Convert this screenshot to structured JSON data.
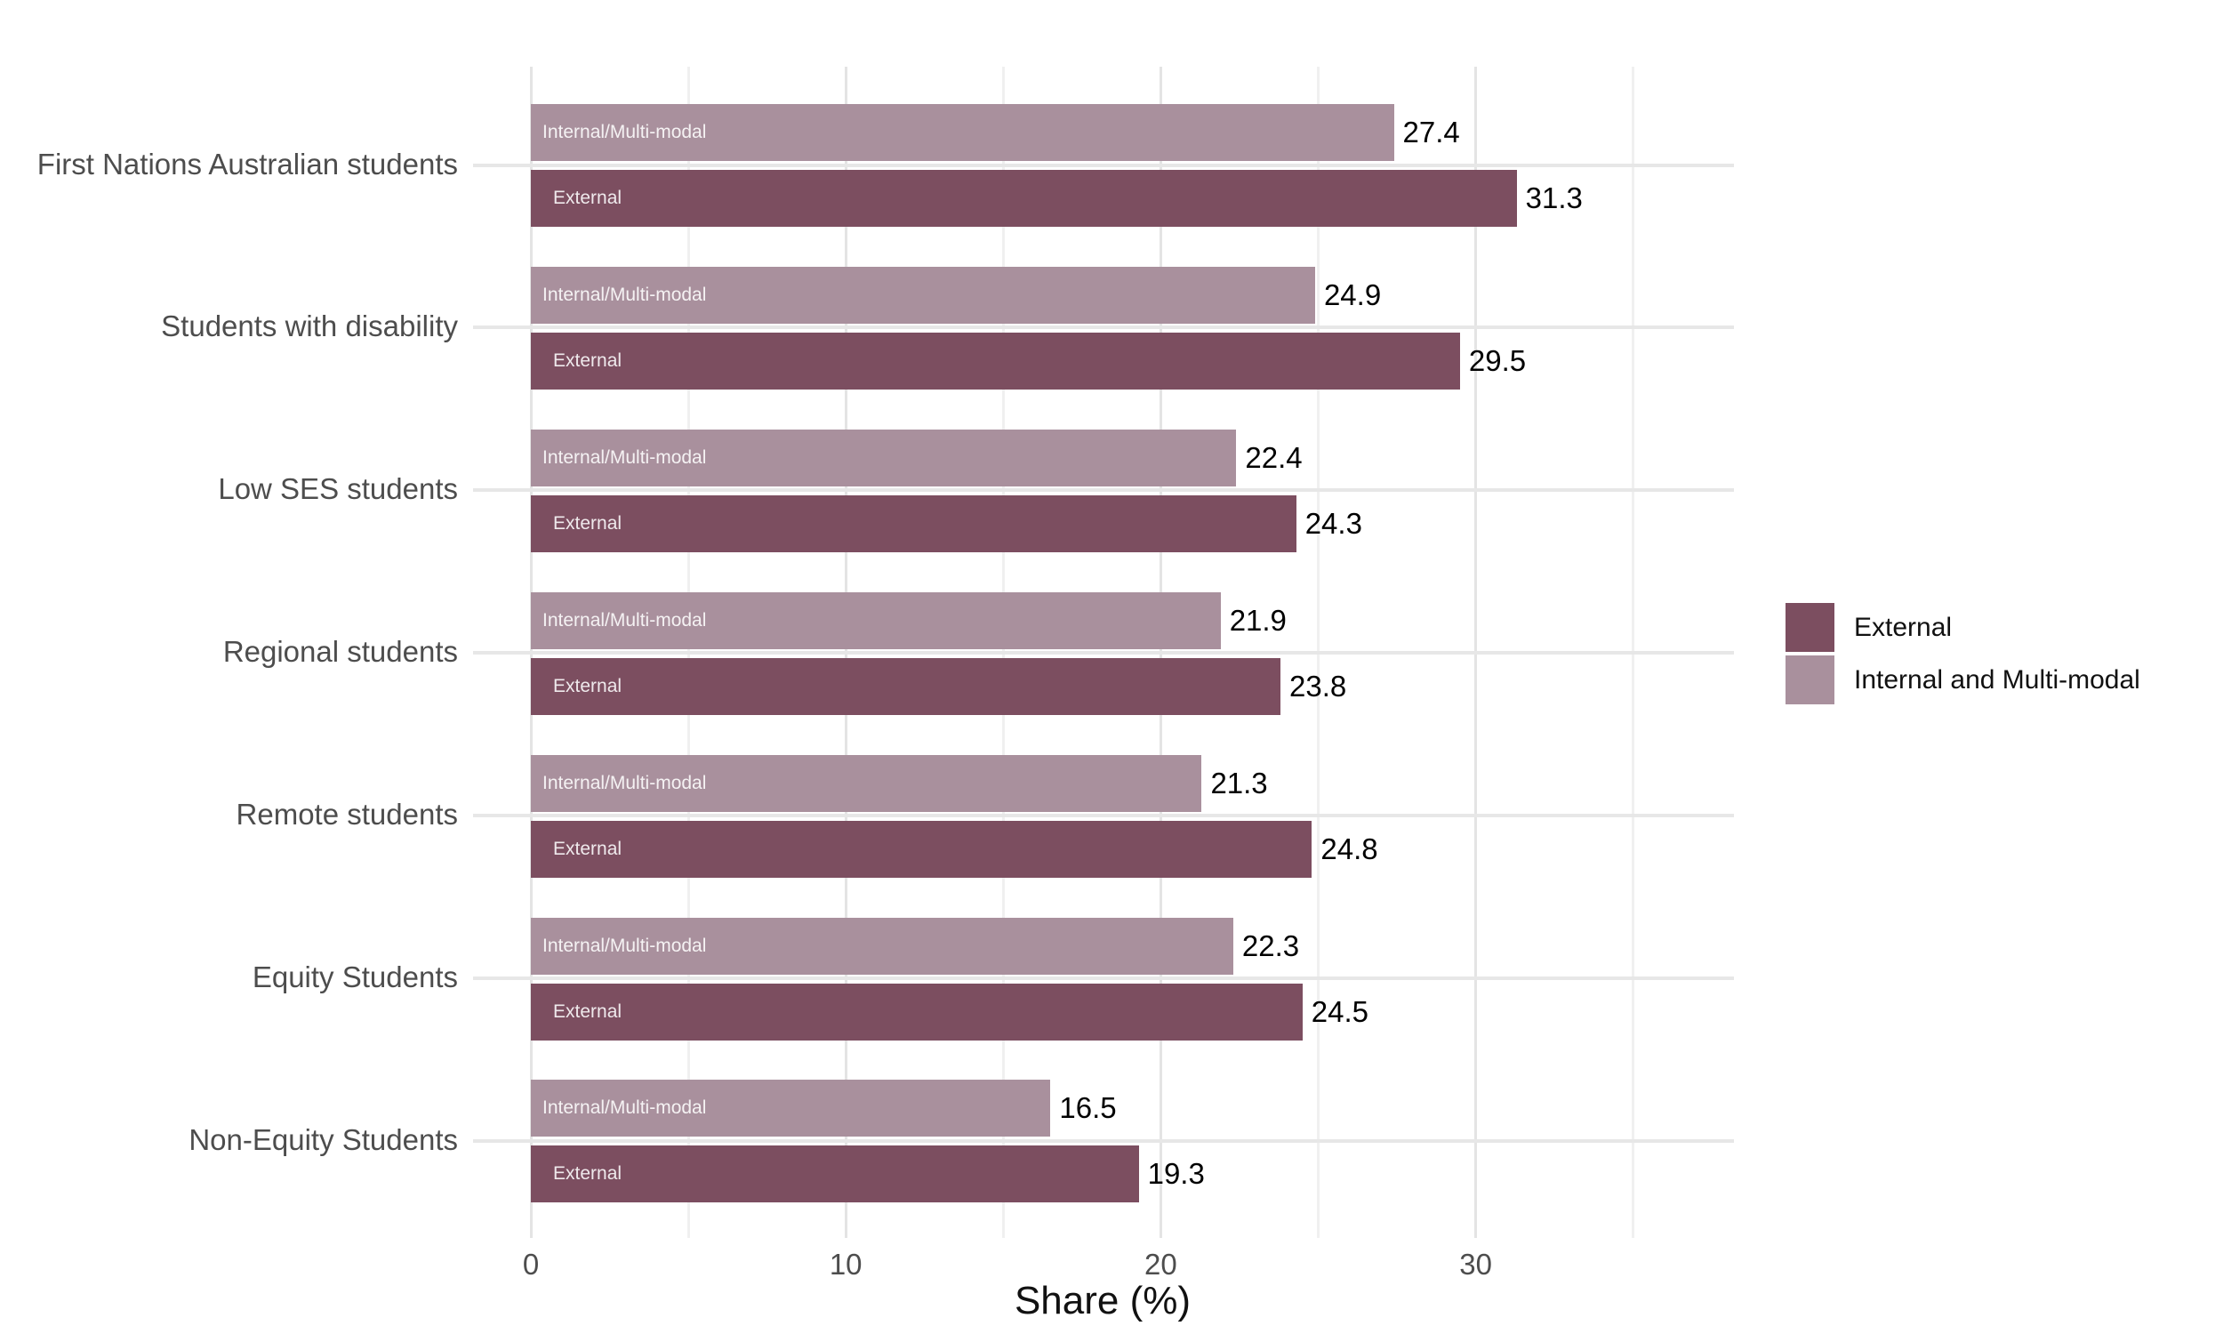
{
  "chart_data": {
    "type": "bar",
    "orientation": "horizontal",
    "title": "",
    "xlabel": "Share (%)",
    "ylabel": "",
    "xlim": [
      0,
      38.2
    ],
    "x_major_ticks": [
      0,
      10,
      20,
      30
    ],
    "x_minor_gridlines": [
      5,
      15,
      25,
      35
    ],
    "grid": true,
    "legend_position": "right",
    "categories": [
      "First Nations Australian students",
      "Students with disability",
      "Low SES students",
      "Regional students",
      "Remote students",
      "Equity Students",
      "Non-Equity Students"
    ],
    "series": [
      {
        "name": "External",
        "in_bar_label": "External",
        "color": "#7C4E60",
        "values": [
          31.3,
          29.5,
          24.3,
          23.8,
          24.8,
          24.5,
          19.3
        ]
      },
      {
        "name": "Internal and Multi-modal",
        "in_bar_label": "Internal/Multi-modal",
        "color": "#A9909D",
        "values": [
          27.4,
          24.9,
          22.4,
          21.9,
          21.3,
          22.3,
          16.5
        ]
      }
    ],
    "bar_order_top_to_bottom": [
      "Internal and Multi-modal",
      "External"
    ]
  },
  "legend": {
    "entries": [
      {
        "label": "External",
        "color": "#7C4E60"
      },
      {
        "label": "Internal and Multi-modal",
        "color": "#A9909D"
      }
    ]
  },
  "colors": {
    "background": "#FFFFFF",
    "grid_major": "#E4E4E4",
    "grid_minor": "#F0F0F0",
    "category_gridline": "#E7E7E7",
    "axis_text": "#4D4D4D",
    "value_label": "#000000",
    "in_bar_label": "rgba(255,255,255,0.88)",
    "axis_title": "#111111",
    "legend_text": "#111111"
  }
}
